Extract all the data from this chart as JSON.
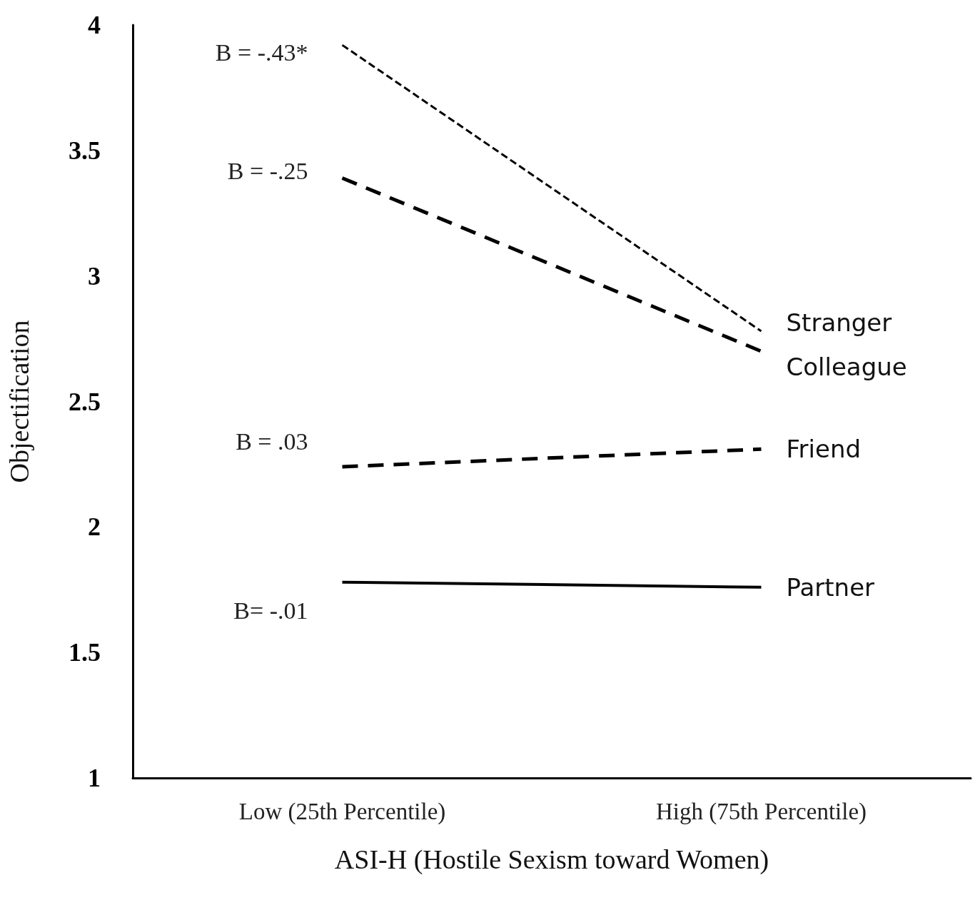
{
  "chart_data": {
    "type": "line",
    "xlabel": "ASI-H (Hostile Sexism toward Women)",
    "ylabel": "Objectification",
    "categories": [
      "Low (25th Percentile)",
      "High (75th Percentile)"
    ],
    "series": [
      {
        "name": "Stranger",
        "color": "#000000",
        "values": [
          3.92,
          2.78
        ],
        "line_style": "dashed"
      },
      {
        "name": "Colleague",
        "color": "#000000",
        "values": [
          3.39,
          2.7
        ],
        "line_style": "dashed"
      },
      {
        "name": "Friend",
        "color": "#000000",
        "values": [
          2.24,
          2.31
        ],
        "line_style": "dashed"
      },
      {
        "name": "Partner",
        "color": "#000000",
        "values": [
          1.78,
          1.76
        ],
        "line_style": "solid"
      }
    ],
    "ylim": [
      1,
      4
    ],
    "yticks": [
      1,
      1.5,
      2,
      2.5,
      3,
      3.5,
      4
    ],
    "grid": false,
    "legend": false,
    "marker": "none",
    "annotations": [
      "B = -.43*",
      "B = -.25",
      "B = .03",
      "B= -.01"
    ]
  }
}
